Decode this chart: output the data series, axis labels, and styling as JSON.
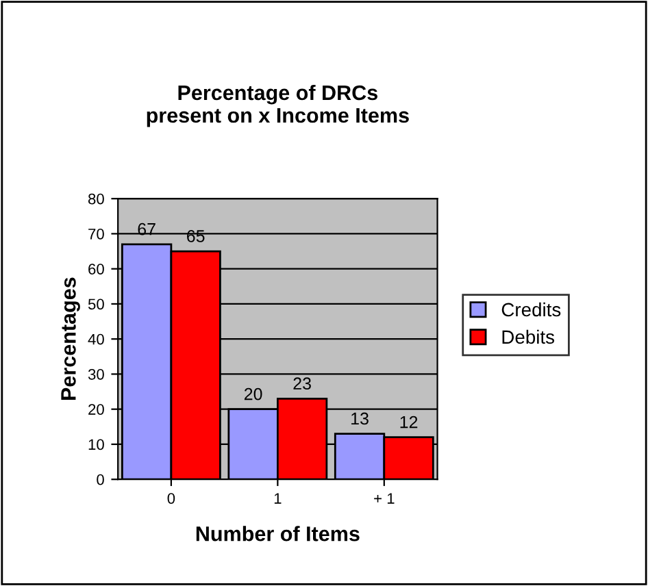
{
  "chart_data": {
    "type": "bar",
    "title": "Percentage of DRCs\npresent on x Income Items",
    "xlabel": "Number of Items",
    "ylabel": "Percentages",
    "categories": [
      "0",
      "1",
      "+ 1"
    ],
    "series": [
      {
        "name": "Credits",
        "color": "#9999ff",
        "values": [
          67,
          20,
          13
        ]
      },
      {
        "name": "Debits",
        "color": "#ff0000",
        "values": [
          65,
          23,
          12
        ]
      }
    ],
    "ylim": [
      0,
      80
    ],
    "yticks": [
      0,
      10,
      20,
      30,
      40,
      50,
      60,
      70,
      80
    ],
    "grid": "y",
    "legend": "right",
    "data_labels": true
  }
}
